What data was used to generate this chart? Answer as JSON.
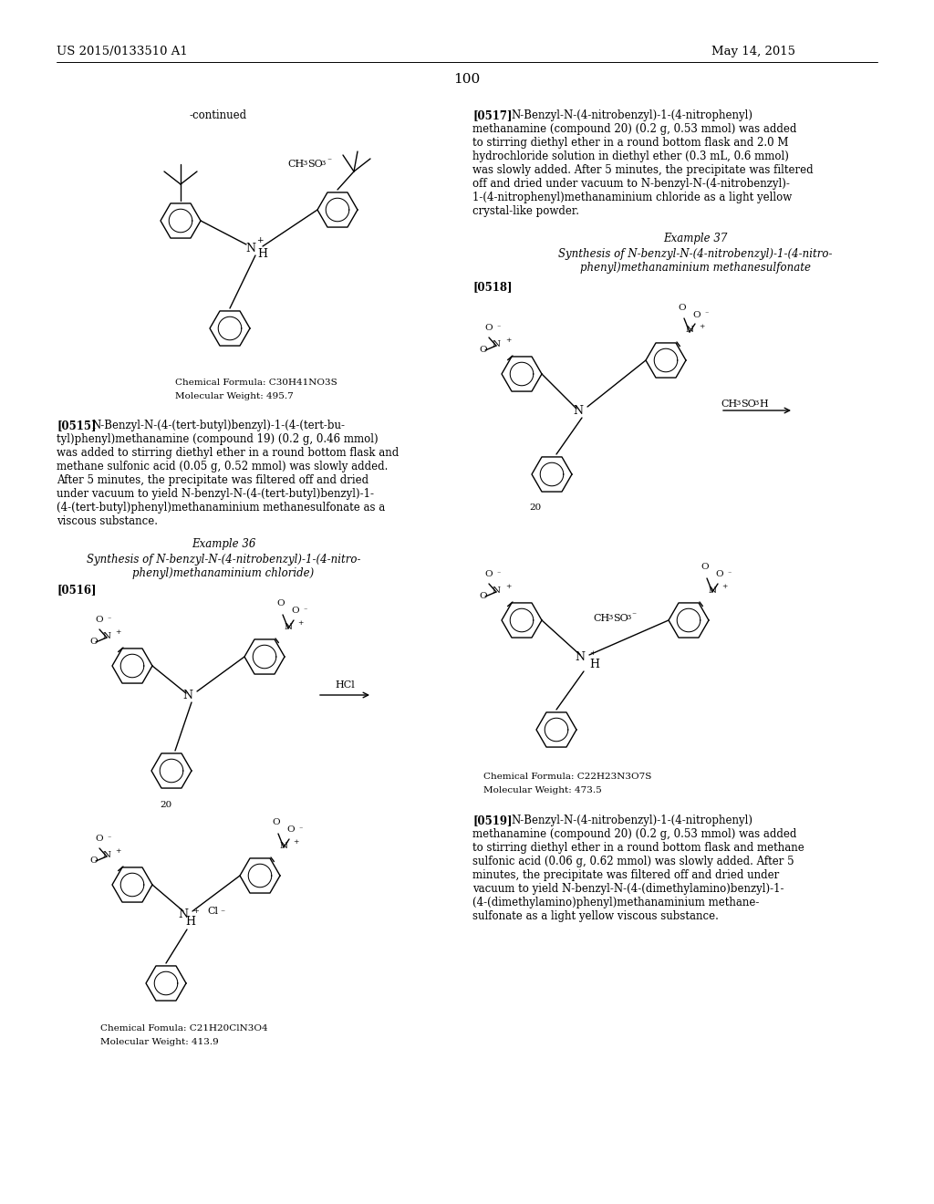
{
  "page_width": 10.24,
  "page_height": 13.2,
  "dpi": 100,
  "background": "#ffffff",
  "header_left": "US 2015/0133510 A1",
  "header_right": "May 14, 2015",
  "page_number": "100"
}
